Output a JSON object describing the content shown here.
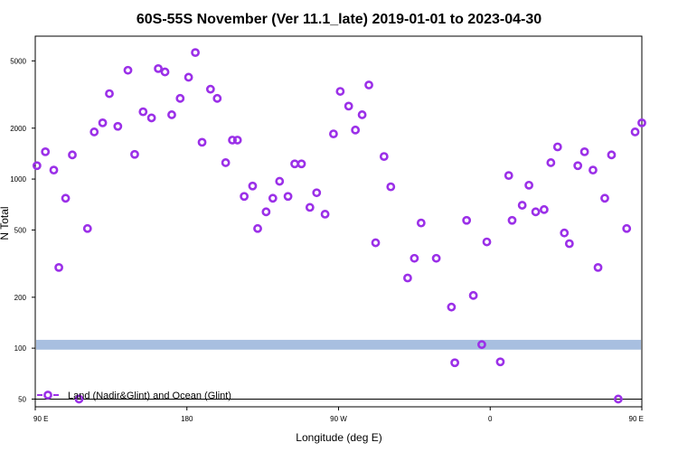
{
  "chart_data": {
    "type": "scatter",
    "title": "60S-55S November (Ver 11.1_late)   2019-01-01 to 2023-04-30",
    "xlabel": "Longitude (deg E)",
    "ylabel": "N Total",
    "y_scale": "log",
    "ylim": [
      45,
      7000
    ],
    "xlim": [
      90,
      450
    ],
    "x_ticks": [
      {
        "value": 90,
        "label": "90 E"
      },
      {
        "value": 180,
        "label": "180"
      },
      {
        "value": 270,
        "label": "90 W"
      },
      {
        "value": 360,
        "label": "0"
      },
      {
        "value": 450,
        "label": "90 E"
      },
      {
        "value": 540,
        "label": "180"
      }
    ],
    "y_ticks": [
      50,
      100,
      200,
      500,
      1000,
      2000,
      5000
    ],
    "band": {
      "y_range": [
        98,
        112
      ],
      "color": "#a8bfe0"
    },
    "baseline_y": 50,
    "grid": false,
    "legend_position": "bottom-left",
    "series": [
      {
        "name": "Land (Nadir&Glint) and Ocean (Glint)",
        "color": "#9b30e8",
        "points": [
          [
            91,
            1200
          ],
          [
            96,
            1450
          ],
          [
            101,
            1130
          ],
          [
            104,
            300
          ],
          [
            108,
            770
          ],
          [
            112,
            1390
          ],
          [
            116,
            50
          ],
          [
            121,
            510
          ],
          [
            125,
            1900
          ],
          [
            130,
            2150
          ],
          [
            134,
            3200
          ],
          [
            139,
            2050
          ],
          [
            145,
            4400
          ],
          [
            149,
            1400
          ],
          [
            154,
            2500
          ],
          [
            159,
            2300
          ],
          [
            163,
            4500
          ],
          [
            167,
            4300
          ],
          [
            171,
            2400
          ],
          [
            176,
            3000
          ],
          [
            181,
            4000
          ],
          [
            185,
            5600
          ],
          [
            189,
            1650
          ],
          [
            194,
            3400
          ],
          [
            198,
            3000
          ],
          [
            203,
            1250
          ],
          [
            207,
            1700
          ],
          [
            210,
            1700
          ],
          [
            214,
            790
          ],
          [
            219,
            910
          ],
          [
            222,
            510
          ],
          [
            227,
            640
          ],
          [
            231,
            770
          ],
          [
            235,
            970
          ],
          [
            240,
            790
          ],
          [
            244,
            1230
          ],
          [
            248,
            1230
          ],
          [
            253,
            680
          ],
          [
            257,
            830
          ],
          [
            262,
            620
          ],
          [
            267,
            1850
          ],
          [
            271,
            3300
          ],
          [
            276,
            2700
          ],
          [
            280,
            1950
          ],
          [
            284,
            2400
          ],
          [
            288,
            3600
          ],
          [
            292,
            420
          ],
          [
            297,
            1360
          ],
          [
            301,
            900
          ],
          [
            311,
            260
          ],
          [
            315,
            340
          ],
          [
            319,
            550
          ],
          [
            328,
            340
          ],
          [
            337,
            175
          ],
          [
            339,
            82
          ],
          [
            346,
            570
          ],
          [
            350,
            205
          ],
          [
            355,
            105
          ],
          [
            358,
            425
          ],
          [
            366,
            83
          ],
          [
            371,
            1050
          ],
          [
            373,
            570
          ],
          [
            379,
            700
          ],
          [
            383,
            920
          ],
          [
            387,
            640
          ],
          [
            392,
            660
          ],
          [
            396,
            1250
          ],
          [
            400,
            1550
          ],
          [
            404,
            480
          ],
          [
            407,
            415
          ],
          [
            412,
            1200
          ],
          [
            416,
            1450
          ],
          [
            421,
            1130
          ],
          [
            424,
            300
          ],
          [
            428,
            770
          ],
          [
            432,
            1390
          ],
          [
            436,
            50
          ],
          [
            441,
            510
          ],
          [
            446,
            1900
          ],
          [
            450,
            2150
          ]
        ]
      }
    ]
  }
}
